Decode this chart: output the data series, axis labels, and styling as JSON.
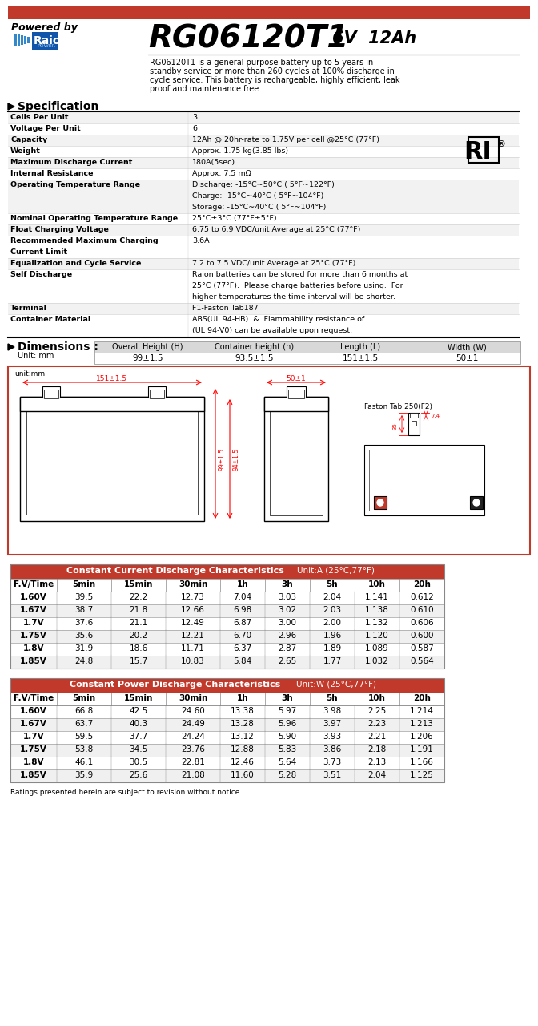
{
  "title_model": "RG06120T1",
  "title_voltage": "6V  12Ah",
  "powered_by": "Powered by",
  "description": "RG06120T1 is a general purpose battery up to 5 years in\nstandby service or more than 260 cycles at 100% discharge in\ncycle service. This battery is rechargeable, highly efficient, leak\nproof and maintenance free.",
  "spec_title": "Specification",
  "spec_rows": [
    [
      "Cells Per Unit",
      "3",
      1
    ],
    [
      "Voltage Per Unit",
      "6",
      1
    ],
    [
      "Capacity",
      "12Ah @ 20hr-rate to 1.75V per cell @25°C (77°F)",
      1
    ],
    [
      "Weight",
      "Approx. 1.75 kg(3.85 lbs)",
      1
    ],
    [
      "Maximum Discharge Current",
      "180A(5sec)",
      1
    ],
    [
      "Internal Resistance",
      "Approx. 7.5 mΩ",
      1
    ],
    [
      "Operating Temperature Range",
      "Discharge: -15°C~50°C ( 5°F~122°F)\nCharge: -15°C~40°C ( 5°F~104°F)\nStorage: -15°C~40°C ( 5°F~104°F)",
      3
    ],
    [
      "Nominal Operating Temperature Range",
      "25°C±3°C (77°F±5°F)",
      1
    ],
    [
      "Float Charging Voltage",
      "6.75 to 6.9 VDC/unit Average at 25°C (77°F)",
      1
    ],
    [
      "Recommended Maximum Charging\nCurrent Limit",
      "3.6A",
      2
    ],
    [
      "Equalization and Cycle Service",
      "7.2 to 7.5 VDC/unit Average at 25°C (77°F)",
      1
    ],
    [
      "Self Discharge",
      "Raion batteries can be stored for more than 6 months at\n25°C (77°F).  Please charge batteries before using.  For\nhigher temperatures the time interval will be shorter.",
      3
    ],
    [
      "Terminal",
      "F1-Faston Tab187",
      1
    ],
    [
      "Container Material",
      "ABS(UL 94-HB)  &  Flammability resistance of\n(UL 94-V0) can be available upon request.",
      2
    ]
  ],
  "dim_title": "Dimensions :",
  "dim_unit": "Unit: mm",
  "dim_headers": [
    "Overall Height (H)",
    "Container height (h)",
    "Length (L)",
    "Width (W)"
  ],
  "dim_values": [
    "99±1.5",
    "93.5±1.5",
    "151±1.5",
    "50±1"
  ],
  "cc_title": "Constant Current Discharge Characteristics",
  "cc_unit": "Unit:A (25°C,77°F)",
  "cc_headers": [
    "F.V/Time",
    "5min",
    "15min",
    "30min",
    "1h",
    "3h",
    "5h",
    "10h",
    "20h"
  ],
  "cc_data": [
    [
      "1.60V",
      "39.5",
      "22.2",
      "12.73",
      "7.04",
      "3.03",
      "2.04",
      "1.141",
      "0.612"
    ],
    [
      "1.67V",
      "38.7",
      "21.8",
      "12.66",
      "6.98",
      "3.02",
      "2.03",
      "1.138",
      "0.610"
    ],
    [
      "1.7V",
      "37.6",
      "21.1",
      "12.49",
      "6.87",
      "3.00",
      "2.00",
      "1.132",
      "0.606"
    ],
    [
      "1.75V",
      "35.6",
      "20.2",
      "12.21",
      "6.70",
      "2.96",
      "1.96",
      "1.120",
      "0.600"
    ],
    [
      "1.8V",
      "31.9",
      "18.6",
      "11.71",
      "6.37",
      "2.87",
      "1.89",
      "1.089",
      "0.587"
    ],
    [
      "1.85V",
      "24.8",
      "15.7",
      "10.83",
      "5.84",
      "2.65",
      "1.77",
      "1.032",
      "0.564"
    ]
  ],
  "cp_title": "Constant Power Discharge Characteristics",
  "cp_unit": "Unit:W (25°C,77°F)",
  "cp_headers": [
    "F.V/Time",
    "5min",
    "15min",
    "30min",
    "1h",
    "3h",
    "5h",
    "10h",
    "20h"
  ],
  "cp_data": [
    [
      "1.60V",
      "66.8",
      "42.5",
      "24.60",
      "13.38",
      "5.97",
      "3.98",
      "2.25",
      "1.214"
    ],
    [
      "1.67V",
      "63.7",
      "40.3",
      "24.49",
      "13.28",
      "5.96",
      "3.97",
      "2.23",
      "1.213"
    ],
    [
      "1.7V",
      "59.5",
      "37.7",
      "24.24",
      "13.12",
      "5.90",
      "3.93",
      "2.21",
      "1.206"
    ],
    [
      "1.75V",
      "53.8",
      "34.5",
      "23.76",
      "12.88",
      "5.83",
      "3.86",
      "2.18",
      "1.191"
    ],
    [
      "1.8V",
      "46.1",
      "30.5",
      "22.81",
      "12.46",
      "5.64",
      "3.73",
      "2.13",
      "1.166"
    ],
    [
      "1.85V",
      "35.9",
      "25.6",
      "21.08",
      "11.60",
      "5.28",
      "3.51",
      "2.04",
      "1.125"
    ]
  ],
  "footer": "Ratings presented herein are subject to revision without notice.",
  "top_bar_color": "#c0392b",
  "table_title_bg": "#c0392b",
  "table_subhdr_bg": "#c8c8c8",
  "alt_row_bg": "#f0f0f0",
  "dim_header_bg": "#d8d8d8",
  "red_border": "#c0392b"
}
